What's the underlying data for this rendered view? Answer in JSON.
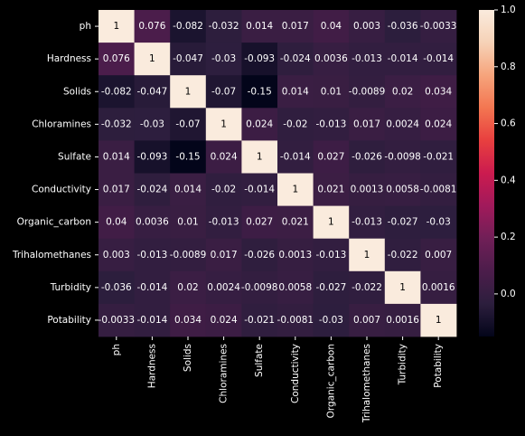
{
  "chart_data": {
    "type": "heatmap",
    "title": "",
    "xlabel": "",
    "ylabel": "",
    "variables": [
      "ph",
      "Hardness",
      "Solids",
      "Chloramines",
      "Sulfate",
      "Conductivity",
      "Organic_carbon",
      "Trihalomethanes",
      "Turbidity",
      "Potability"
    ],
    "value_labels": [
      [
        "1",
        "0.076",
        "-0.082",
        "-0.032",
        "0.014",
        "0.017",
        "0.04",
        "0.003",
        "-0.036",
        "-0.0033"
      ],
      [
        "0.076",
        "1",
        "-0.047",
        "-0.03",
        "-0.093",
        "-0.024",
        "0.0036",
        "-0.013",
        "-0.014",
        "-0.014"
      ],
      [
        "-0.082",
        "-0.047",
        "1",
        "-0.07",
        "-0.15",
        "0.014",
        "0.01",
        "-0.0089",
        "0.02",
        "0.034"
      ],
      [
        "-0.032",
        "-0.03",
        "-0.07",
        "1",
        "0.024",
        "-0.02",
        "-0.013",
        "0.017",
        "0.0024",
        "0.024"
      ],
      [
        "0.014",
        "-0.093",
        "-0.15",
        "0.024",
        "1",
        "-0.014",
        "0.027",
        "-0.026",
        "-0.0098",
        "-0.021"
      ],
      [
        "0.017",
        "-0.024",
        "0.014",
        "-0.02",
        "-0.014",
        "1",
        "0.021",
        "0.0013",
        "0.0058",
        "-0.0081"
      ],
      [
        "0.04",
        "0.0036",
        "0.01",
        "-0.013",
        "0.027",
        "0.021",
        "1",
        "-0.013",
        "-0.027",
        "-0.03"
      ],
      [
        "0.003",
        "-0.013",
        "-0.0089",
        "0.017",
        "-0.026",
        "0.0013",
        "-0.013",
        "1",
        "-0.022",
        "0.007"
      ],
      [
        "-0.036",
        "-0.014",
        "0.02",
        "0.0024",
        "-0.0098",
        "0.0058",
        "-0.027",
        "-0.022",
        "1",
        "0.0016"
      ],
      [
        "-0.0033",
        "-0.014",
        "0.034",
        "0.024",
        "-0.021",
        "-0.0081",
        "-0.03",
        "0.007",
        "0.0016",
        "1"
      ]
    ],
    "color_range": [
      -0.15,
      1.0
    ],
    "colorbar_ticks": [
      "0.0",
      "0.2",
      "0.4",
      "0.6",
      "0.8",
      "1.0"
    ],
    "colormap": [
      "#03051a",
      "#2c1e3d",
      "#4c1d4b",
      "#701f57",
      "#a11a5b",
      "#cb1b4f",
      "#e83f3f",
      "#f37651",
      "#f6a47c",
      "#f6d2b7",
      "#faebdd"
    ],
    "annotation_colors": {
      "on_dark": "#ffffff",
      "on_light": "#000000"
    },
    "grid": false
  }
}
